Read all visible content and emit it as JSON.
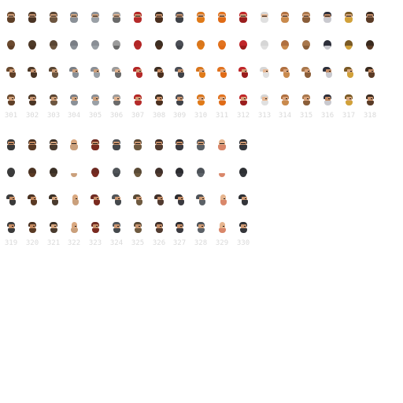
{
  "sheet": {
    "background": "#ffffff",
    "label_color": "#d9d9d9",
    "views": [
      "front",
      "back",
      "side-left",
      "side-right"
    ]
  },
  "groups": [
    {
      "characters": [
        {
          "label": "301",
          "hair": "#6b4a2f",
          "skin": "#d2a07a",
          "beard": "#5e3f27"
        },
        {
          "label": "302",
          "hair": "#4f3a28",
          "skin": "#c89470",
          "beard": "#4a3424"
        },
        {
          "label": "303",
          "hair": "#5a4634",
          "skin": "#cf9f78",
          "beard": "#6d5640"
        },
        {
          "label": "304",
          "hair": "#7a7f86",
          "skin": "#d3a47e",
          "beard": "#8a9097"
        },
        {
          "label": "305",
          "hair": "#8a8f96",
          "skin": "#cfa07b",
          "beard": "#9aa0a6"
        },
        {
          "label": "306",
          "hair": "#9b9b9b",
          "skin": "#e0b28f",
          "beard": "#6a6a6a"
        },
        {
          "label": "307",
          "hair": "#b32626",
          "skin": "#d49a74",
          "beard": "#b52a2a"
        },
        {
          "label": "308",
          "hair": "#3d2e22",
          "skin": "#c98e66",
          "beard": "#4a2f1f"
        },
        {
          "label": "309",
          "hair": "#4b4e55",
          "skin": "#c9946e",
          "beard": "#3f4248"
        },
        {
          "label": "310",
          "hair": "#d9761c",
          "skin": "#e0a77d",
          "beard": "#e07a18"
        },
        {
          "label": "311",
          "hair": "#e2731f",
          "skin": "#e2ab82",
          "beard": "#e06b16"
        },
        {
          "label": "312",
          "hair": "#c0262a",
          "skin": "#d9a07a",
          "beard": "#9a1d1d"
        },
        {
          "label": "313",
          "hair": "#d6d6d6",
          "skin": "#e8b995",
          "beard": "#e0e0e0"
        },
        {
          "label": "314",
          "hair": "#b07040",
          "skin": "#dba47c",
          "beard": "#c98a4d"
        },
        {
          "label": "315",
          "hair": "#a8774c",
          "skin": "#d8a27a",
          "beard": "#8a5e39"
        },
        {
          "label": "316",
          "hair": "#2d2f3a",
          "skin": "#c58d66",
          "beard": "#c9c9cf"
        },
        {
          "label": "317",
          "hair": "#7a5a25",
          "skin": "#d9a77c",
          "beard": "#d1a13a"
        },
        {
          "label": "318",
          "hair": "#3a2a1e",
          "skin": "#c8906a",
          "beard": "#5a3b26"
        }
      ]
    },
    {
      "characters": [
        {
          "label": "319",
          "hair": "#3c3c3c",
          "skin": "#c98f66",
          "beard": "#3a3a3a"
        },
        {
          "label": "320",
          "hair": "#4a3222",
          "skin": "#c58a60",
          "beard": "#5a3a24"
        },
        {
          "label": "321",
          "hair": "#3b3026",
          "skin": "#d6a57e",
          "beard": "#4a3b2e"
        },
        {
          "label": "322",
          "hair": "#d2a178",
          "skin": "#d9a880",
          "beard": "#caa07c"
        },
        {
          "label": "323",
          "hair": "#6e2a22",
          "skin": "#c8906a",
          "beard": "#7a2a20"
        },
        {
          "label": "324",
          "hair": "#505458",
          "skin": "#cb9670",
          "beard": "#45494d"
        },
        {
          "label": "325",
          "hair": "#5a4a36",
          "skin": "#c99670",
          "beard": "#6e5a40"
        },
        {
          "label": "326",
          "hair": "#40302a",
          "skin": "#c48c66",
          "beard": "#513b30"
        },
        {
          "label": "327",
          "hair": "#2c2c30",
          "skin": "#c88f68",
          "beard": "#3a3a40"
        },
        {
          "label": "328",
          "hair": "#4d5258",
          "skin": "#cf9c76",
          "beard": "#5b6167"
        },
        {
          "label": "329",
          "hair": "#e3b08a",
          "skin": "#e6b58f",
          "beard": "#d9876a"
        },
        {
          "label": "330",
          "hair": "#2e3034",
          "skin": "#cf9a74",
          "beard": "#34363b"
        }
      ]
    }
  ]
}
